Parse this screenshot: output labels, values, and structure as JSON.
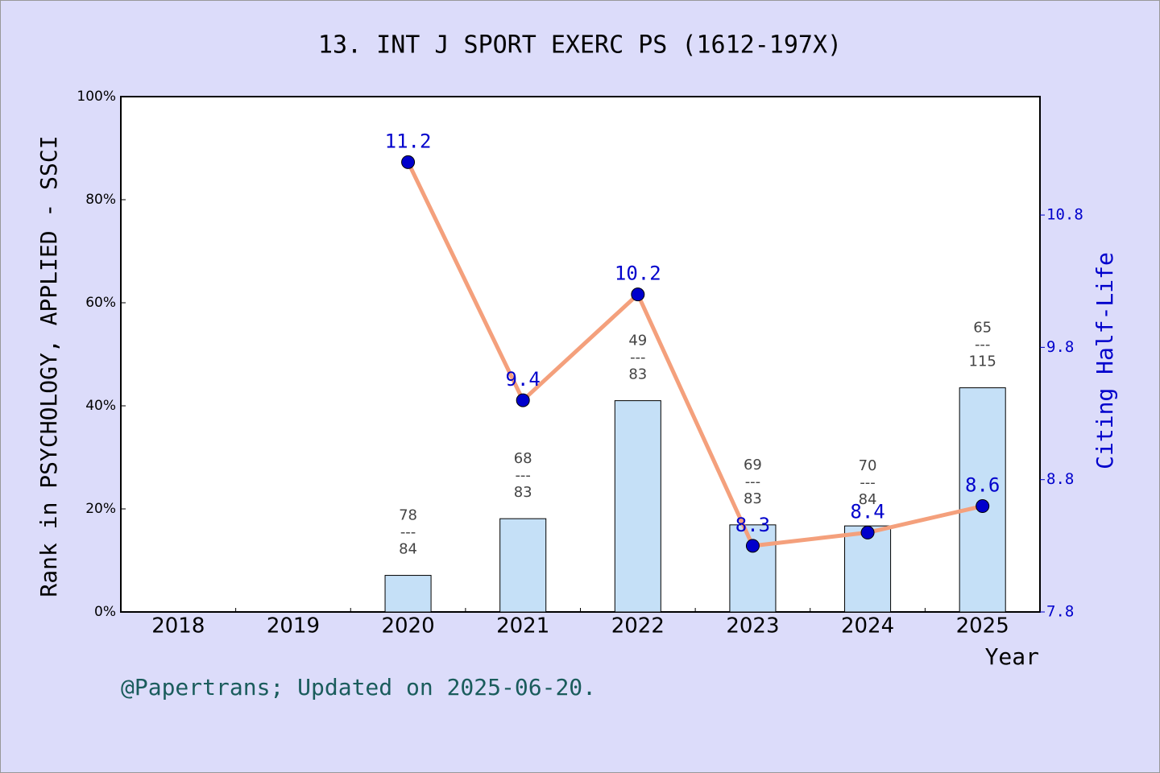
{
  "chart_data": {
    "type": "bar_line",
    "title": "13. INT J SPORT EXERC PS (1612-197X)",
    "x_label": "Year",
    "y_label": "Rank in PSYCHOLOGY, APPLIED - SSCI",
    "y2_label": "Citing Half-Life",
    "footer": "@Papertrans; Updated on 2025-06-20.",
    "categories": [
      "2018",
      "2019",
      "2020",
      "2021",
      "2022",
      "2023",
      "2024",
      "2025"
    ],
    "ylim": [
      0,
      100
    ],
    "yticks": [
      {
        "value": 0,
        "label": "0%"
      },
      {
        "value": 20,
        "label": "20%"
      },
      {
        "value": 40,
        "label": "40%"
      },
      {
        "value": 60,
        "label": "60%"
      },
      {
        "value": 80,
        "label": "80%"
      },
      {
        "value": 100,
        "label": "100%"
      }
    ],
    "y2lim": [
      7.8,
      11.695
    ],
    "y2ticks": [
      7.8,
      8.8,
      9.8,
      10.8
    ],
    "rank_separator": "---",
    "series": [
      {
        "type": "bar",
        "color": "#c5e0f7",
        "values": [
          null,
          null,
          7.1,
          18.1,
          41.0,
          16.9,
          16.7,
          43.5
        ],
        "rank": [
          null,
          null,
          78,
          68,
          49,
          69,
          70,
          65
        ],
        "total": [
          null,
          null,
          84,
          83,
          83,
          83,
          84,
          115
        ]
      },
      {
        "type": "line",
        "axis": "y2",
        "color": "#f4a07c",
        "marker_color": "#0000cc",
        "values": [
          null,
          null,
          11.2,
          9.4,
          10.2,
          8.3,
          8.4,
          8.6
        ]
      }
    ]
  }
}
